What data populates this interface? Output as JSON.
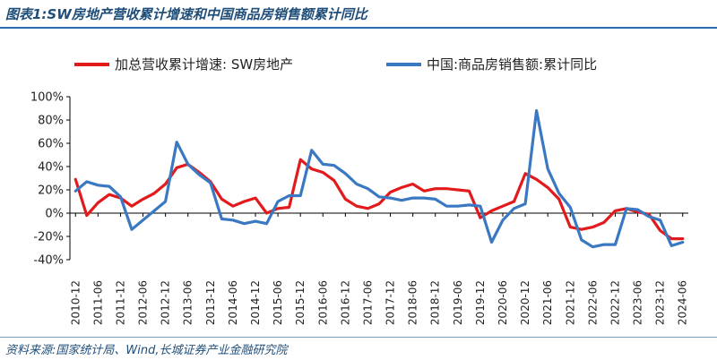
{
  "header": {
    "title": "图表1:SW房地产营收累计增速和中国商品房销售额累计同比"
  },
  "footer": {
    "source": "资料来源:国家统计局、Wind,长城证券产业金融研究院"
  },
  "colors": {
    "series_red": "#e31a1c",
    "series_blue": "#3a78c2",
    "title": "#1f4e79"
  },
  "chart_data": {
    "type": "line",
    "title": "",
    "xlabel": "",
    "ylabel": "",
    "ylim": [
      -40,
      100
    ],
    "yticks": [
      "100%",
      "80%",
      "60%",
      "40%",
      "20%",
      "0%",
      "-20%",
      "-40%"
    ],
    "ytick_values": [
      100,
      80,
      60,
      40,
      20,
      0,
      -20,
      -40
    ],
    "x_tick_labels": [
      "2010-12",
      "2011-06",
      "2011-12",
      "2012-06",
      "2012-12",
      "2013-06",
      "2013-12",
      "2014-06",
      "2014-12",
      "2015-06",
      "2015-12",
      "2016-06",
      "2016-12",
      "2017-06",
      "2017-12",
      "2018-06",
      "2018-12",
      "2019-06",
      "2019-12",
      "2020-06",
      "2020-12",
      "2021-06",
      "2021-12",
      "2022-06",
      "2022-12",
      "2023-06",
      "2023-12",
      "2024-06"
    ],
    "x": [
      "2010-12",
      "2011-03",
      "2011-06",
      "2011-09",
      "2011-12",
      "2012-03",
      "2012-06",
      "2012-09",
      "2012-12",
      "2013-03",
      "2013-06",
      "2013-09",
      "2013-12",
      "2014-03",
      "2014-06",
      "2014-09",
      "2014-12",
      "2015-03",
      "2015-06",
      "2015-09",
      "2015-12",
      "2016-03",
      "2016-06",
      "2016-09",
      "2016-12",
      "2017-03",
      "2017-06",
      "2017-09",
      "2017-12",
      "2018-03",
      "2018-06",
      "2018-09",
      "2018-12",
      "2019-03",
      "2019-06",
      "2019-09",
      "2019-12",
      "2020-03",
      "2020-06",
      "2020-09",
      "2020-12",
      "2021-03",
      "2021-06",
      "2021-09",
      "2021-12",
      "2022-03",
      "2022-06",
      "2022-09",
      "2022-12",
      "2023-03",
      "2023-06",
      "2023-09",
      "2023-12",
      "2024-03",
      "2024-06"
    ],
    "legend_position": "top",
    "grid": false,
    "series": [
      {
        "name": "加总营收累计增速: SW房地产",
        "color": "#e31a1c",
        "values": [
          29,
          -2,
          9,
          16,
          13,
          6,
          12,
          17,
          25,
          39,
          42,
          35,
          27,
          12,
          6,
          10,
          13,
          0,
          4,
          5,
          46,
          38,
          35,
          28,
          12,
          6,
          4,
          8,
          18,
          22,
          25,
          19,
          21,
          21,
          20,
          19,
          -4,
          2,
          6,
          10,
          34,
          29,
          22,
          12,
          -12,
          -14,
          -12,
          -8,
          2,
          4,
          1,
          -1,
          -15,
          -22,
          null
        ],
        "note_last": true
      },
      {
        "name": "中国:商品房销售额:累计同比",
        "color": "#3a78c2",
        "values": [
          19,
          27,
          24,
          23,
          14,
          -14,
          -6,
          2,
          10,
          61,
          42,
          33,
          26,
          -5,
          -6,
          -9,
          -7,
          -9,
          10,
          15,
          15,
          54,
          42,
          41,
          34,
          25,
          21,
          14,
          13,
          11,
          13,
          13,
          12,
          6,
          6,
          7,
          6,
          -25,
          -6,
          4,
          8,
          88,
          38,
          17,
          5,
          -23,
          -29,
          -27,
          -27,
          4,
          3,
          -3,
          -6,
          -28,
          -25
        ]
      }
    ]
  }
}
